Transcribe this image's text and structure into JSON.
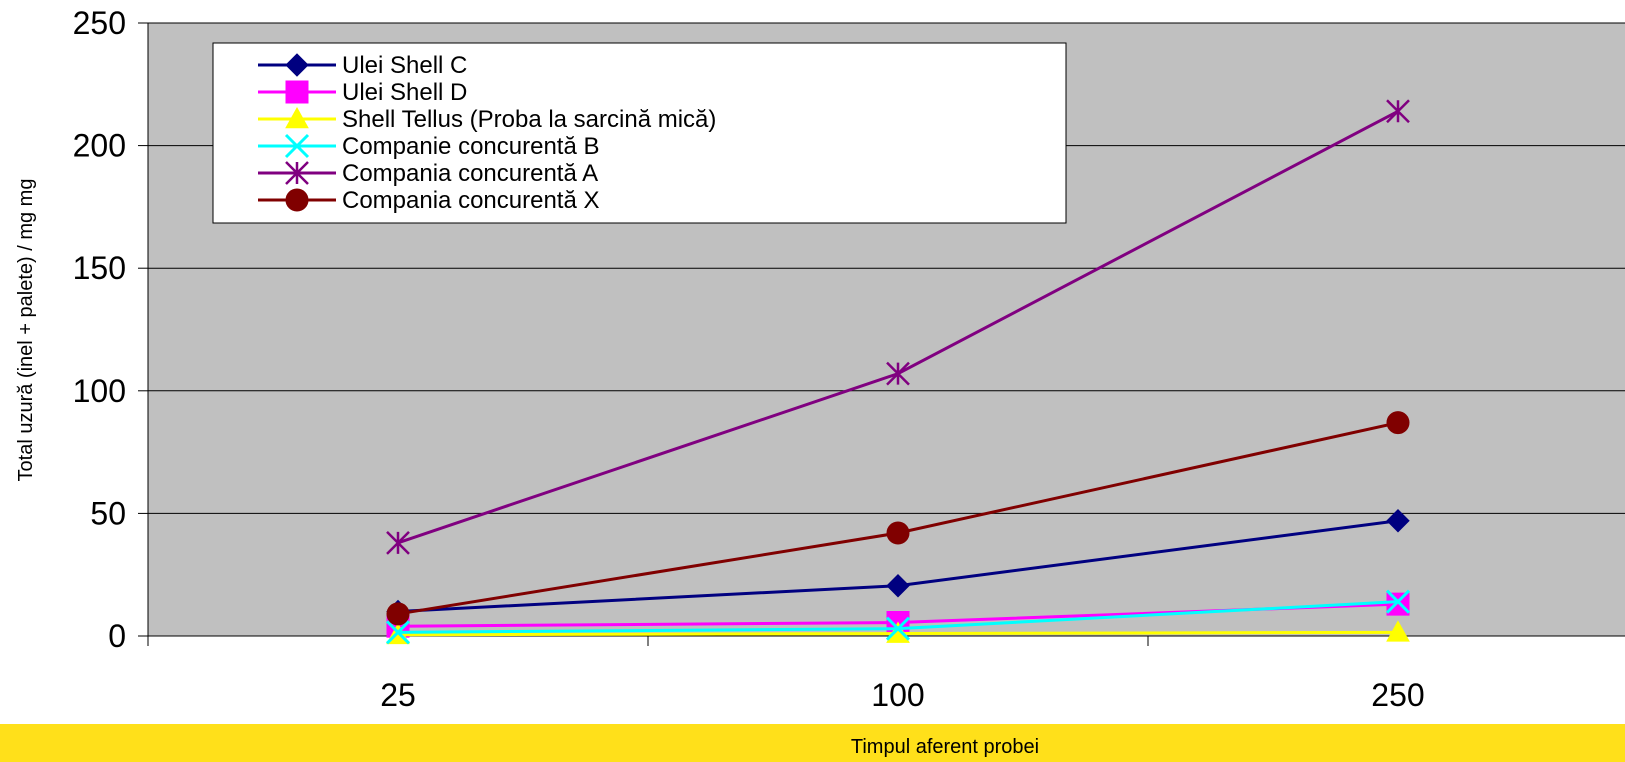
{
  "chart_data": {
    "type": "line",
    "title": "",
    "xlabel": "Timpul aferent probei",
    "ylabel": "Total uzură (inel + palete) / mg  mg",
    "categories": [
      "25",
      "100",
      "250"
    ],
    "ylim": [
      0,
      250
    ],
    "yticks": [
      "0",
      "50",
      "100",
      "150",
      "200",
      "250"
    ],
    "grid": "horizontal",
    "legend_position": "top-left",
    "plot_background": "#c0c0c0",
    "band_color": "#ffe01a",
    "series": [
      {
        "name": "Ulei Shell C",
        "values": [
          10,
          20.5,
          47
        ],
        "color": "#000080",
        "marker": "diamond"
      },
      {
        "name": "Ulei Shell D",
        "values": [
          4,
          5.5,
          13
        ],
        "color": "#ff00ff",
        "marker": "square"
      },
      {
        "name": " Shell Tellus (Proba la sarcină mică)",
        "values": [
          0.5,
          1,
          1.5
        ],
        "color": "#ffff00",
        "marker": "triangle"
      },
      {
        "name": "Companie concurentă B",
        "values": [
          1.5,
          3,
          14
        ],
        "color": "#00ffff",
        "marker": "x"
      },
      {
        "name": "Compania concurentă A",
        "values": [
          38,
          107,
          214
        ],
        "color": "#800080",
        "marker": "star"
      },
      {
        "name": "Compania concurentă X",
        "values": [
          9,
          42,
          87
        ],
        "color": "#800000",
        "marker": "circle"
      }
    ]
  }
}
